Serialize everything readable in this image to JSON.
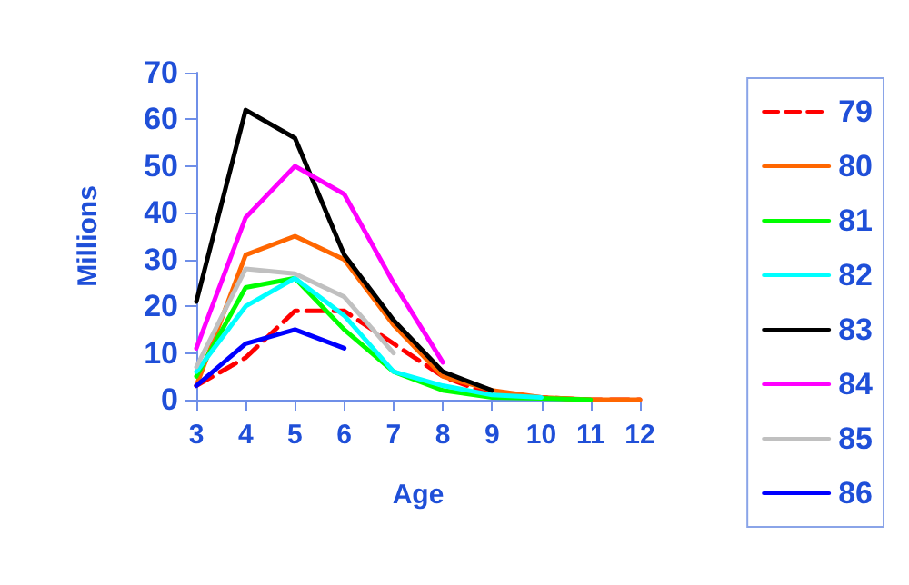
{
  "chart_data": {
    "type": "line",
    "xlabel": "Age",
    "ylabel": "Millions",
    "categories": [
      "3",
      "4",
      "5",
      "6",
      "7",
      "8",
      "9",
      "10",
      "11",
      "12"
    ],
    "ylim": [
      0,
      70
    ],
    "yticks": [
      0,
      10,
      20,
      30,
      40,
      50,
      60,
      70
    ],
    "grid": false,
    "legend": "right",
    "marker": "none",
    "series": [
      {
        "name": "79",
        "color": "#ff0000",
        "line_style": "dashed",
        "values": [
          3,
          9,
          19,
          19,
          12,
          5,
          1,
          0.5,
          0,
          0
        ]
      },
      {
        "name": "80",
        "color": "#ff6600",
        "values": [
          3,
          31,
          35,
          30,
          16,
          5,
          2,
          0.5,
          0,
          0
        ]
      },
      {
        "name": "81",
        "color": "#00ff00",
        "values": [
          5,
          24,
          26,
          15,
          6,
          2,
          0.5,
          0.3,
          0,
          null
        ]
      },
      {
        "name": "82",
        "color": "#00ffff",
        "values": [
          6,
          20,
          26,
          18,
          6,
          3,
          1,
          0.5,
          null,
          null
        ]
      },
      {
        "name": "83",
        "color": "#000000",
        "values": [
          21,
          62,
          56,
          31,
          17,
          6,
          2,
          null,
          null,
          null
        ]
      },
      {
        "name": "84",
        "color": "#ff00ff",
        "values": [
          11,
          39,
          50,
          44,
          25,
          8,
          null,
          null,
          null,
          null
        ]
      },
      {
        "name": "85",
        "color": "#c0c0c0",
        "values": [
          7,
          28,
          27,
          22,
          10,
          null,
          null,
          null,
          null,
          null
        ]
      },
      {
        "name": "86",
        "color": "#0000ff",
        "values": [
          3,
          12,
          15,
          11,
          null,
          null,
          null,
          null,
          null,
          null
        ]
      }
    ]
  }
}
